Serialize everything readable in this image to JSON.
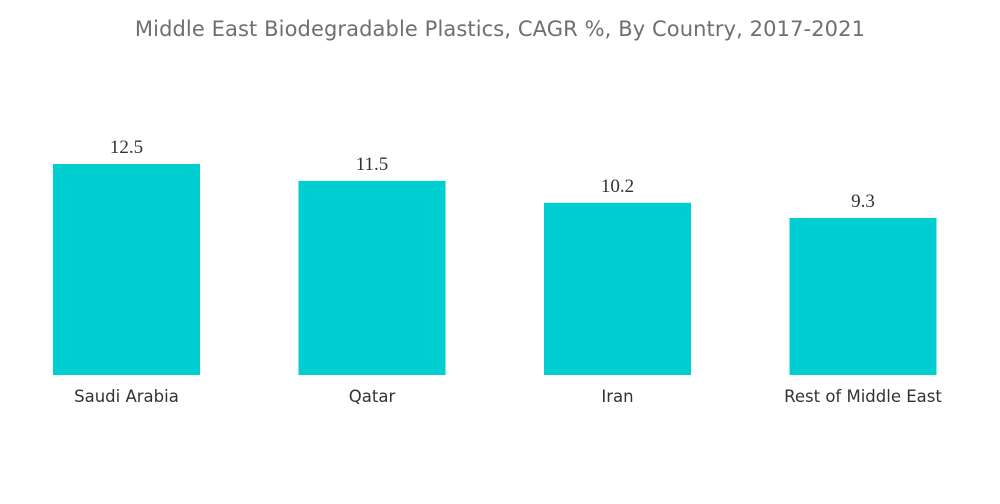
{
  "chart_data": {
    "type": "bar",
    "title": "Middle East Biodegradable Plastics, CAGR %, By Country, 2017-2021",
    "categories": [
      "Saudi Arabia",
      "Qatar",
      "Iran",
      "Rest of Middle East"
    ],
    "values": [
      12.5,
      11.5,
      10.2,
      9.3
    ],
    "value_labels": [
      "12.5",
      "11.5",
      "10.2",
      "9.3"
    ],
    "xlabel": "",
    "ylabel": "",
    "ylim": [
      0,
      12.5
    ],
    "grid": false,
    "legend": "none",
    "bar_color": "#00CED1"
  }
}
